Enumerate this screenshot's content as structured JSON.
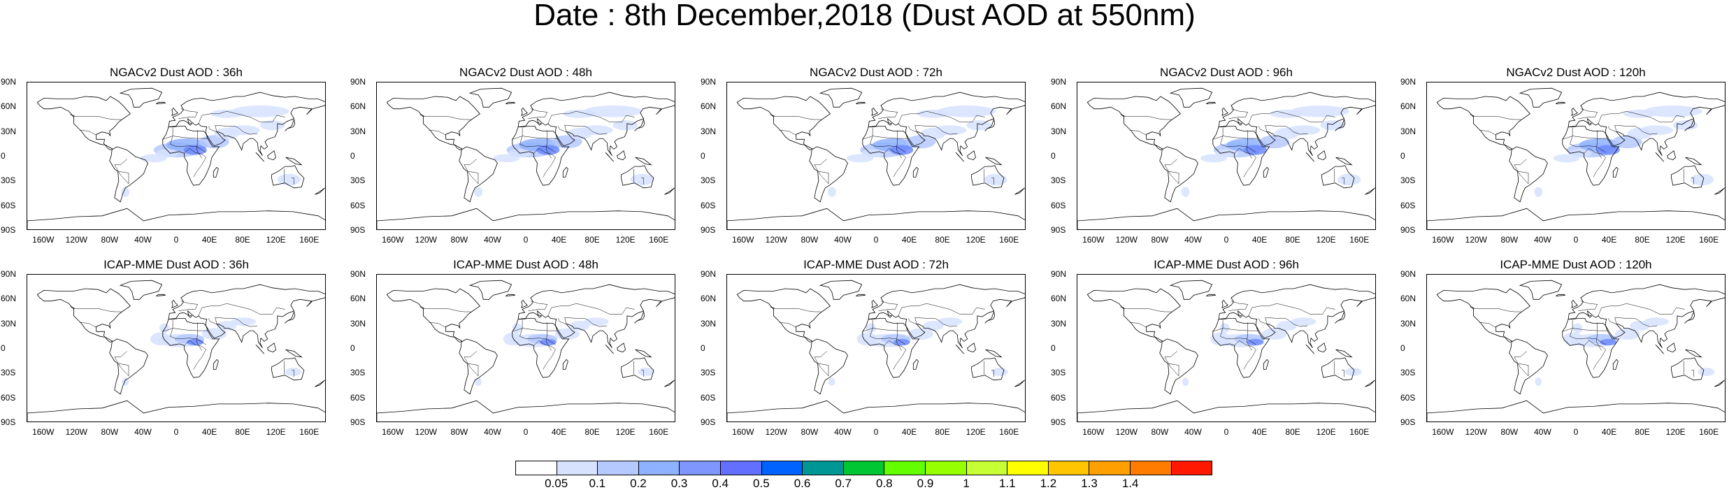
{
  "title": "Date : 8th December,2018 (Dust AOD at 550nm)",
  "lat_ticks": [
    "90N",
    "60N",
    "30N",
    "0",
    "30S",
    "60S",
    "90S"
  ],
  "lon_ticks": [
    "160W",
    "120W",
    "80W",
    "40W",
    "0",
    "40E",
    "80E",
    "120E",
    "160E"
  ],
  "rows": [
    {
      "model": "NGACv2",
      "panels": [
        {
          "title": "NGACv2 Dust AOD : 36h",
          "lead_hours": 36
        },
        {
          "title": "NGACv2 Dust AOD : 48h",
          "lead_hours": 48
        },
        {
          "title": "NGACv2 Dust AOD : 72h",
          "lead_hours": 72
        },
        {
          "title": "NGACv2 Dust AOD : 96h",
          "lead_hours": 96
        },
        {
          "title": "NGACv2 Dust AOD : 120h",
          "lead_hours": 120
        }
      ]
    },
    {
      "model": "ICAP-MME",
      "panels": [
        {
          "title": "ICAP-MME Dust AOD : 36h",
          "lead_hours": 36
        },
        {
          "title": "ICAP-MME Dust AOD : 48h",
          "lead_hours": 48
        },
        {
          "title": "ICAP-MME Dust AOD : 72h",
          "lead_hours": 72
        },
        {
          "title": "ICAP-MME Dust AOD : 96h",
          "lead_hours": 96
        },
        {
          "title": "ICAP-MME Dust AOD : 120h",
          "lead_hours": 120
        }
      ]
    }
  ],
  "colorbar": {
    "colors": [
      "#ffffff",
      "#d6e2ff",
      "#b5c9ff",
      "#8eb2ff",
      "#7f96ff",
      "#6370ff",
      "#0063ff",
      "#009696",
      "#00c633",
      "#63ff00",
      "#96ff00",
      "#c6ff33",
      "#ffff00",
      "#ffc600",
      "#ffa000",
      "#ff7c00",
      "#ff1900"
    ],
    "labels": [
      "0.05",
      "0.1",
      "0.2",
      "0.3",
      "0.4",
      "0.5",
      "0.6",
      "0.7",
      "0.8",
      "0.9",
      "1",
      "1.1",
      "1.2",
      "1.3",
      "1.4"
    ]
  },
  "dust_colors": {
    "light": "#d6e2ff",
    "medium": "#b5c9ff",
    "strong": "#8eb2ff",
    "max": "#6f8bff"
  }
}
